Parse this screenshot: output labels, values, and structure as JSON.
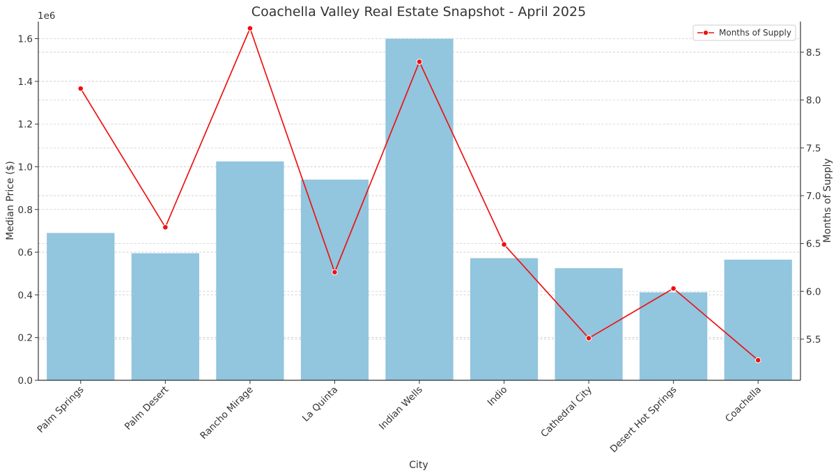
{
  "chart_data": {
    "type": "bar",
    "title": "Coachella Valley Real Estate Snapshot - April 2025",
    "xlabel": "City",
    "ylabel": "Median Price ($)",
    "y2label": "Months of Supply",
    "y_offset_text": "1e6",
    "categories": [
      "Palm Springs",
      "Palm Desert",
      "Rancho Mirage",
      "La Quinta",
      "Indian Wells",
      "Indio",
      "Cathedral City",
      "Desert Hot Springs",
      "Coachella"
    ],
    "series": [
      {
        "type": "bar",
        "axis": "left",
        "values": [
          690000,
          595000,
          1025000,
          940000,
          1600000,
          572000,
          525000,
          412000,
          565000
        ],
        "color": "#92c5de"
      },
      {
        "name": "Months of Supply",
        "type": "line",
        "axis": "right",
        "values": [
          8.12,
          6.67,
          8.75,
          6.2,
          8.4,
          6.49,
          5.51,
          6.03,
          5.28
        ],
        "color": "#ee1111"
      }
    ],
    "ylim": [
      0,
      1680000
    ],
    "y2lim": [
      5.07,
      8.82
    ],
    "yticks": [
      0,
      200000,
      400000,
      600000,
      800000,
      1000000,
      1200000,
      1400000,
      1600000
    ],
    "ytick_labels": [
      "0.0",
      "0.2",
      "0.4",
      "0.6",
      "0.8",
      "1.0",
      "1.2",
      "1.4",
      "1.6"
    ],
    "y2ticks": [
      5.5,
      6.0,
      6.5,
      7.0,
      7.5,
      8.0,
      8.5
    ],
    "y2tick_labels": [
      "5.5",
      "6.0",
      "6.5",
      "7.0",
      "7.5",
      "8.0",
      "8.5"
    ],
    "grid": true,
    "legend_position": "top-right"
  }
}
